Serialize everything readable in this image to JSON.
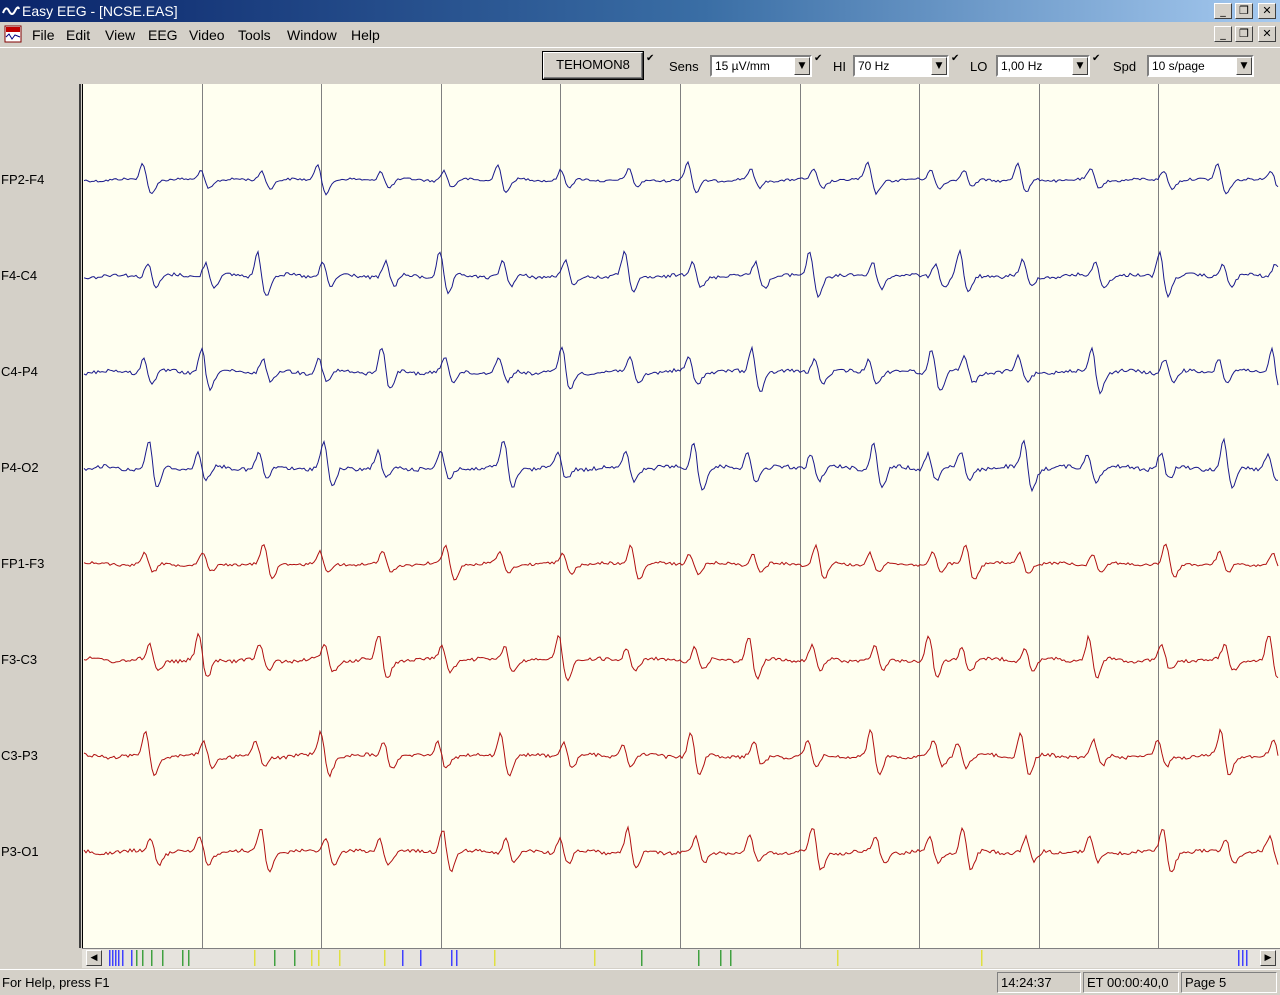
{
  "window": {
    "title": "Easy EEG - [NCSE.EAS]"
  },
  "menu": [
    "File",
    "Edit",
    "View",
    "EEG",
    "Video",
    "Tools",
    "Window",
    "Help"
  ],
  "toolbar": {
    "montage": "TEHOMON8",
    "sens_label": "Sens",
    "sens_value": "15 µV/mm",
    "hi_label": "HI",
    "hi_value": "70 Hz",
    "lo_label": "LO",
    "lo_value": "1,00 Hz",
    "spd_label": "Spd",
    "spd_value": "10 s/page"
  },
  "channels": [
    {
      "name": "FP2-F4",
      "color": "#1a1a8c",
      "amp": 0.7
    },
    {
      "name": "F4-C4",
      "color": "#1a1a8c",
      "amp": 1.0
    },
    {
      "name": "C4-P4",
      "color": "#1a1a8c",
      "amp": 1.0
    },
    {
      "name": "P4-O2",
      "color": "#1a1a8c",
      "amp": 1.1
    },
    {
      "name": "FP1-F3",
      "color": "#b01010",
      "amp": 0.8
    },
    {
      "name": "F3-C3",
      "color": "#b01010",
      "amp": 1.0
    },
    {
      "name": "C3-P3",
      "color": "#b01010",
      "amp": 1.0
    },
    {
      "name": "P3-O1",
      "color": "#b01010",
      "amp": 1.0
    }
  ],
  "epoch_seconds": 10,
  "colors": {
    "blue_trace": "#1a1a8c",
    "red_trace": "#b01010",
    "background": "#fffff0"
  },
  "status": {
    "help": "For Help, press F1",
    "clock": "14:24:37",
    "elapsed": "ET 00:00:40,0",
    "page": "Page 5"
  }
}
